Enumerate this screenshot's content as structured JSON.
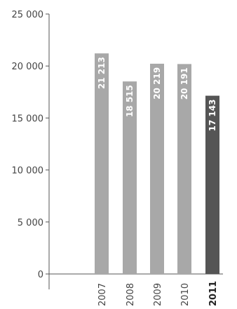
{
  "chart_data": {
    "type": "bar",
    "categories": [
      "2007",
      "2008",
      "2009",
      "2010",
      "2011"
    ],
    "values": [
      21213,
      18515,
      20219,
      20191,
      17143
    ],
    "value_labels": [
      "21 213",
      "18 515",
      "20 219",
      "20 191",
      "17 143"
    ],
    "y_ticks": [
      0,
      5000,
      10000,
      15000,
      20000,
      25000
    ],
    "y_tick_labels": [
      "0",
      "5 000",
      "10 000",
      "15 000",
      "20 000",
      "25 000"
    ],
    "ylim": [
      0,
      25000
    ],
    "highlight_index": 4,
    "colors": {
      "bar": "#a8a8a8",
      "highlight": "#555555",
      "axis": "#555555"
    },
    "grid": false,
    "title": "",
    "xlabel": "",
    "ylabel": ""
  }
}
